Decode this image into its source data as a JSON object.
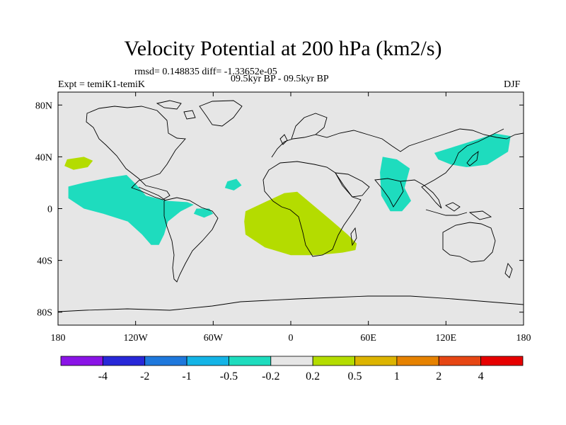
{
  "chart_data": {
    "type": "heatmap",
    "title": "Velocity Potential at 200 hPa (km2/s)",
    "stats": "rmsd= 0.148835 diff= -1.33652e-05",
    "subtitle": "09.5kyr BP - 09.5kyr BP",
    "experiment": "Expt = temiK1-temiK",
    "season": "DJF",
    "xlim": [
      -180,
      180
    ],
    "ylim": [
      -90,
      90
    ],
    "x_ticks": [
      {
        "value": -180,
        "label": "180"
      },
      {
        "value": -120,
        "label": "120W"
      },
      {
        "value": -60,
        "label": "60W"
      },
      {
        "value": 0,
        "label": "0"
      },
      {
        "value": 60,
        "label": "60E"
      },
      {
        "value": 120,
        "label": "120E"
      },
      {
        "value": 180,
        "label": "180"
      }
    ],
    "y_ticks": [
      {
        "value": 80,
        "label": "80N"
      },
      {
        "value": 40,
        "label": "40N"
      },
      {
        "value": 0,
        "label": "0"
      },
      {
        "value": -40,
        "label": "40S"
      },
      {
        "value": -80,
        "label": "80S"
      }
    ],
    "colorbar": {
      "colors": [
        "#8a14e6",
        "#2828d8",
        "#1e78dc",
        "#14b4e6",
        "#1edcbe",
        "#e6e6e6",
        "#b4dc00",
        "#dcb400",
        "#e68200",
        "#e64614",
        "#e60000"
      ],
      "labels": [
        "-4",
        "-2",
        "-1",
        "-0.5",
        "-0.2",
        "0.2",
        "0.5",
        "1",
        "2",
        "4"
      ]
    },
    "regions": [
      {
        "name": "north-pacific-positive",
        "level": "0.2 to 0.5",
        "color": "#b4dc00",
        "points": [
          [
            -173,
            38
          ],
          [
            -160,
            40
          ],
          [
            -153,
            37
          ],
          [
            -157,
            32
          ],
          [
            -168,
            30
          ],
          [
            -175,
            33
          ]
        ]
      },
      {
        "name": "east-pacific-negative",
        "level": "-0.5 to -0.2",
        "color": "#1edcbe",
        "points": [
          [
            -172,
            17
          ],
          [
            -160,
            20
          ],
          [
            -140,
            24
          ],
          [
            -127,
            26
          ],
          [
            -120,
            19
          ],
          [
            -112,
            10
          ],
          [
            -96,
            6
          ],
          [
            -80,
            5
          ],
          [
            -75,
            3
          ],
          [
            -85,
            -2
          ],
          [
            -95,
            -10
          ],
          [
            -98,
            -20
          ],
          [
            -102,
            -28
          ],
          [
            -108,
            -28
          ],
          [
            -115,
            -20
          ],
          [
            -126,
            -10
          ],
          [
            -145,
            -4
          ],
          [
            -160,
            0
          ],
          [
            -172,
            8
          ]
        ]
      },
      {
        "name": "atlantic-negative-small",
        "level": "-0.5 to -0.2",
        "color": "#1edcbe",
        "points": [
          [
            -49,
            21
          ],
          [
            -42,
            23
          ],
          [
            -38,
            18
          ],
          [
            -44,
            14
          ],
          [
            -51,
            16
          ]
        ]
      },
      {
        "name": "south-america-negative",
        "level": "-0.5 to -0.2",
        "color": "#1edcbe",
        "points": [
          [
            -73,
            0
          ],
          [
            -63,
            0
          ],
          [
            -60,
            -4
          ],
          [
            -67,
            -7
          ],
          [
            -75,
            -4
          ]
        ]
      },
      {
        "name": "africa-positive",
        "level": "0.2 to 0.5",
        "color": "#b4dc00",
        "points": [
          [
            -35,
            -2
          ],
          [
            -20,
            5
          ],
          [
            -5,
            12
          ],
          [
            5,
            13
          ],
          [
            18,
            2
          ],
          [
            30,
            -8
          ],
          [
            44,
            -20
          ],
          [
            51,
            -27
          ],
          [
            50,
            -32
          ],
          [
            40,
            -34
          ],
          [
            20,
            -36
          ],
          [
            0,
            -36
          ],
          [
            -20,
            -30
          ],
          [
            -35,
            -20
          ],
          [
            -36,
            -10
          ]
        ]
      },
      {
        "name": "asia-negative",
        "level": "-0.5 to -0.2",
        "color": "#1edcbe",
        "points": [
          [
            71,
            40
          ],
          [
            82,
            38
          ],
          [
            92,
            31
          ],
          [
            88,
            16
          ],
          [
            93,
            6
          ],
          [
            86,
            -2
          ],
          [
            77,
            -2
          ],
          [
            70,
            10
          ],
          [
            69,
            28
          ]
        ]
      },
      {
        "name": "east-asia-negative",
        "level": "-0.5 to -0.2",
        "color": "#1edcbe",
        "points": [
          [
            111,
            43
          ],
          [
            127,
            48
          ],
          [
            143,
            53
          ],
          [
            158,
            58
          ],
          [
            170,
            56
          ],
          [
            168,
            44
          ],
          [
            152,
            34
          ],
          [
            136,
            32
          ],
          [
            124,
            34
          ],
          [
            114,
            38
          ]
        ]
      }
    ]
  }
}
